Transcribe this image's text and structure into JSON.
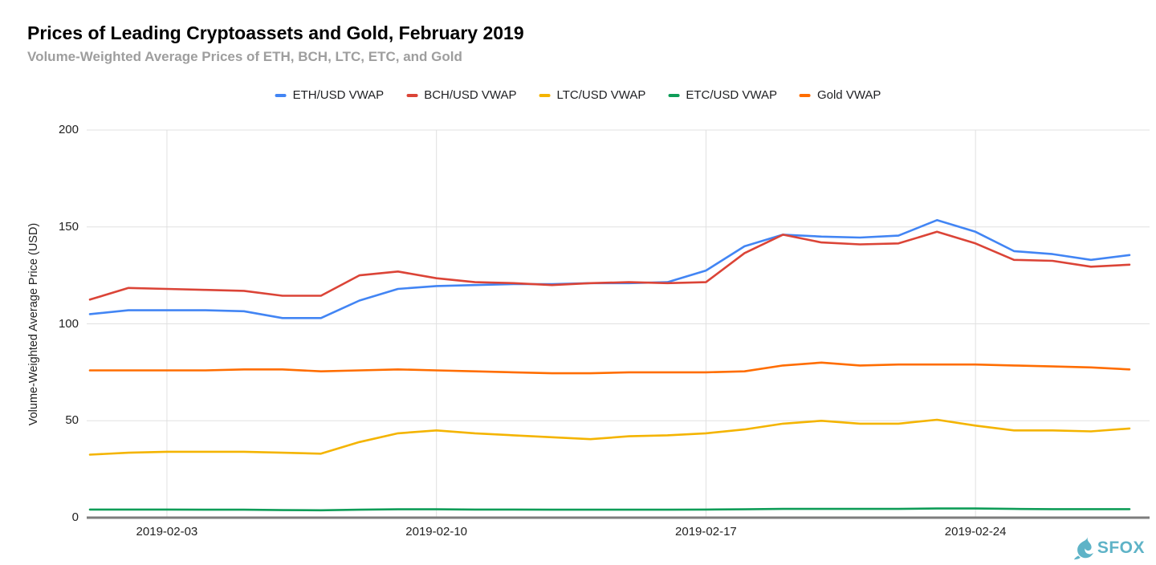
{
  "branding": {
    "name": "SFOX",
    "color": "#5EB3C7"
  },
  "chart_data": {
    "type": "line",
    "title": "Prices of Leading Cryptoassets and Gold, February 2019",
    "subtitle": "Volume-Weighted Average Prices of ETH, BCH, LTC, ETC, and Gold",
    "xlabel": "",
    "ylabel": "Volume-Weighted Average Price (USD)",
    "ylim": [
      0,
      200
    ],
    "y_ticks": [
      0,
      50,
      100,
      150,
      200
    ],
    "x_tick_labels": [
      "2019-02-03",
      "2019-02-10",
      "2019-02-17",
      "2019-02-24"
    ],
    "x_tick_days": [
      3,
      10,
      17,
      24
    ],
    "grid": true,
    "legend_position": "top",
    "x": [
      "2019-02-01",
      "2019-02-02",
      "2019-02-03",
      "2019-02-04",
      "2019-02-05",
      "2019-02-06",
      "2019-02-07",
      "2019-02-08",
      "2019-02-09",
      "2019-02-10",
      "2019-02-11",
      "2019-02-12",
      "2019-02-13",
      "2019-02-14",
      "2019-02-15",
      "2019-02-16",
      "2019-02-17",
      "2019-02-18",
      "2019-02-19",
      "2019-02-20",
      "2019-02-21",
      "2019-02-22",
      "2019-02-23",
      "2019-02-24",
      "2019-02-25",
      "2019-02-26",
      "2019-02-27",
      "2019-02-28"
    ],
    "series": [
      {
        "name": "ETH/USD VWAP",
        "color": "#4285F4",
        "values": [
          105,
          107,
          107,
          107,
          106.5,
          103,
          103,
          112,
          118,
          119.5,
          120,
          120.5,
          120.5,
          121,
          121,
          121.5,
          127.5,
          140,
          146,
          145,
          144.5,
          145.5,
          153.5,
          147.5,
          137.5,
          136,
          133,
          135.5
        ]
      },
      {
        "name": "BCH/USD VWAP",
        "color": "#DB4437",
        "values": [
          112.5,
          118.5,
          118,
          117.5,
          117,
          114.5,
          114.5,
          125,
          127,
          123.5,
          121.5,
          121,
          120,
          121,
          121.5,
          121,
          121.5,
          136.5,
          146,
          142,
          141,
          141.5,
          147.5,
          141.5,
          133,
          132.5,
          129.5,
          130.5
        ]
      },
      {
        "name": "LTC/USD VWAP",
        "color": "#F4B400",
        "values": [
          32.5,
          33.5,
          34,
          34,
          34,
          33.5,
          33,
          39,
          43.5,
          45,
          43.5,
          42.5,
          41.5,
          40.5,
          42,
          42.5,
          43.5,
          45.5,
          48.5,
          50,
          48.5,
          48.5,
          50.5,
          47.5,
          45,
          45,
          44.5,
          46
        ]
      },
      {
        "name": "ETC/USD VWAP",
        "color": "#0F9D58",
        "values": [
          4.2,
          4.2,
          4.2,
          4.1,
          4.1,
          3.9,
          3.8,
          4.1,
          4.3,
          4.3,
          4.2,
          4.2,
          4.1,
          4.1,
          4.1,
          4.1,
          4.2,
          4.3,
          4.5,
          4.5,
          4.5,
          4.5,
          4.7,
          4.7,
          4.5,
          4.4,
          4.4,
          4.4
        ]
      },
      {
        "name": "Gold VWAP",
        "color": "#FF6D00",
        "values": [
          76,
          76,
          76,
          76,
          76.5,
          76.5,
          75.5,
          76,
          76.5,
          76,
          75.5,
          75,
          74.5,
          74.5,
          75,
          75,
          75,
          75.5,
          78.5,
          80,
          78.5,
          79,
          79,
          79,
          78.5,
          78,
          77.5,
          76.5
        ]
      }
    ]
  }
}
